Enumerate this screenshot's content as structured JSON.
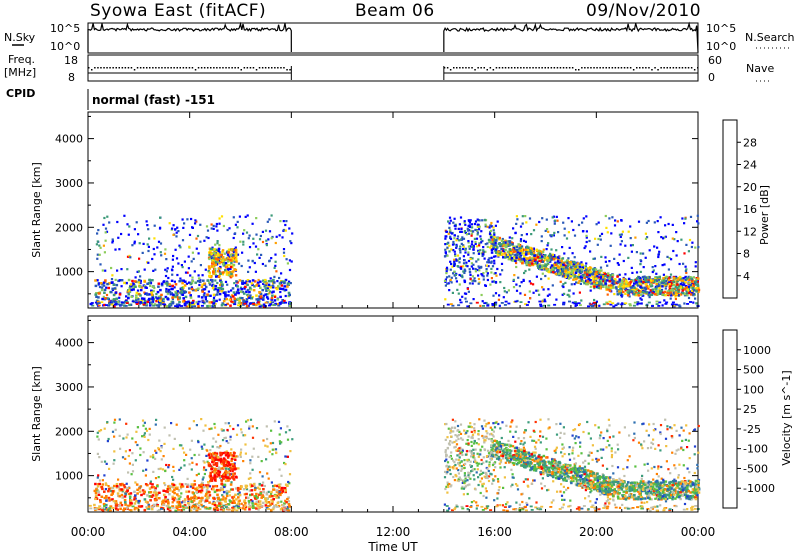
{
  "header": {
    "station": "Syowa East (fitACF)",
    "beam": "Beam 06",
    "date": "09/Nov/2010"
  },
  "top_panels": {
    "nsky_label": "N.Sky",
    "nsky_ticks": [
      "10^5",
      "10^0"
    ],
    "nsearch_label": "N.Search",
    "nsearch_ticks": [
      "10^5",
      "10^0"
    ],
    "freq_label_line1": "Freq.",
    "freq_label_line2": "[MHz]",
    "freq_ticks": [
      "18",
      "8"
    ],
    "nave_label": "Nave",
    "nave_ticks": [
      "60",
      "0"
    ],
    "cpid_label": "CPID",
    "cpid_value": "normal (fast) -151"
  },
  "chart_data": [
    {
      "type": "heatmap",
      "name": "power-panel",
      "ylabel": "Slant Range [km]",
      "yticks": [
        1000,
        2000,
        3000,
        4000
      ],
      "ylim": [
        180,
        4600
      ],
      "xlim_hours": [
        0,
        24
      ],
      "colorbar_label": "Power [dB]",
      "colorbar_ticks": [
        "28",
        "24",
        "20",
        "16",
        "12",
        "8",
        "4"
      ],
      "colorbar_colors": [
        "#ff0000",
        "#ff6000",
        "#ffa000",
        "#ffe000",
        "#8ccc5a",
        "#3c9a78",
        "#2858b8",
        "#0000ff"
      ],
      "data_gap_hours": [
        8.0,
        14.0
      ],
      "scatter_echo_region_km": [
        200,
        2300
      ]
    },
    {
      "type": "heatmap",
      "name": "velocity-panel",
      "ylabel": "Slant Range [km]",
      "yticks": [
        1000,
        2000,
        3000,
        4000
      ],
      "ylim": [
        180,
        4600
      ],
      "xlim_hours": [
        0,
        24
      ],
      "colorbar_label": "Velocity [m s^-1]",
      "colorbar_ticks": [
        "1000",
        "500",
        "100",
        "25",
        "-25",
        "-100",
        "-500",
        "-1000"
      ],
      "colorbar_colors": [
        "#2040d0",
        "#2c6eb0",
        "#3c9c7c",
        "#58c040",
        "#c0c0b0",
        "#f0c040",
        "#ff8000",
        "#ff3000",
        "#ff0000"
      ],
      "data_gap_hours": [
        8.0,
        14.0
      ],
      "scatter_echo_region_km": [
        200,
        2300
      ]
    }
  ],
  "x_axis": {
    "ticks": [
      "00:00",
      "04:00",
      "08:00",
      "12:00",
      "16:00",
      "20:00",
      "00:00"
    ],
    "label": "Time UT"
  },
  "colors": {
    "power_scale": [
      "#0000ff",
      "#2858b8",
      "#3c9a78",
      "#8ccc5a",
      "#ffe000",
      "#ffa000",
      "#ff6000",
      "#ff0000"
    ],
    "velocity_scale": [
      "#ff0000",
      "#ff3000",
      "#ff8000",
      "#f0c040",
      "#c0c0b0",
      "#58c040",
      "#3c9c7c",
      "#2c6eb0",
      "#2040d0"
    ]
  }
}
